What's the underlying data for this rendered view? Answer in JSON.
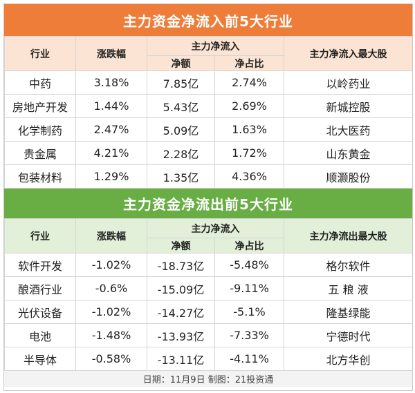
{
  "inflow": {
    "title": "主力资金净流入前5大行业",
    "headers": {
      "industry": "行业",
      "change": "涨跌幅",
      "main_funds": "主力净流入",
      "net_amount": "净额",
      "net_ratio": "净占比",
      "top_stock": "主力净流入最大股"
    },
    "rows": [
      {
        "industry": "中药",
        "change": "3.18%",
        "net_amount": "7.85亿",
        "net_ratio": "2.74%",
        "top_stock": "以岭药业"
      },
      {
        "industry": "房地产开发",
        "change": "1.44%",
        "net_amount": "5.43亿",
        "net_ratio": "2.69%",
        "top_stock": "新城控股"
      },
      {
        "industry": "化学制药",
        "change": "2.47%",
        "net_amount": "5.09亿",
        "net_ratio": "1.63%",
        "top_stock": "北大医药"
      },
      {
        "industry": "贵金属",
        "change": "4.21%",
        "net_amount": "2.28亿",
        "net_ratio": "1.72%",
        "top_stock": "山东黄金"
      },
      {
        "industry": "包装材料",
        "change": "1.29%",
        "net_amount": "1.35亿",
        "net_ratio": "4.36%",
        "top_stock": "顺灏股份"
      }
    ]
  },
  "outflow": {
    "title": "主力资金净流出前5大行业",
    "headers": {
      "industry": "行业",
      "change": "涨跌幅",
      "main_funds": "主力净流入",
      "net_amount": "净额",
      "net_ratio": "净占比",
      "top_stock": "主力净流出最大股"
    },
    "rows": [
      {
        "industry": "软件开发",
        "change": "-1.02%",
        "net_amount": "-18.73亿",
        "net_ratio": "-5.48%",
        "top_stock": "格尔软件"
      },
      {
        "industry": "酿酒行业",
        "change": "-0.6%",
        "net_amount": "-15.09亿",
        "net_ratio": "-9.11%",
        "top_stock": "五 粮 液"
      },
      {
        "industry": "光伏设备",
        "change": "-1.02%",
        "net_amount": "-14.27亿",
        "net_ratio": "-5.1%",
        "top_stock": "隆基绿能"
      },
      {
        "industry": "电池",
        "change": "-1.48%",
        "net_amount": "-13.93亿",
        "net_ratio": "-7.33%",
        "top_stock": "宁德时代"
      },
      {
        "industry": "半导体",
        "change": "-0.58%",
        "net_amount": "-13.11亿",
        "net_ratio": "-4.11%",
        "top_stock": "北方华创"
      }
    ]
  },
  "footer": "日期：11月9日 制图：21投资通"
}
